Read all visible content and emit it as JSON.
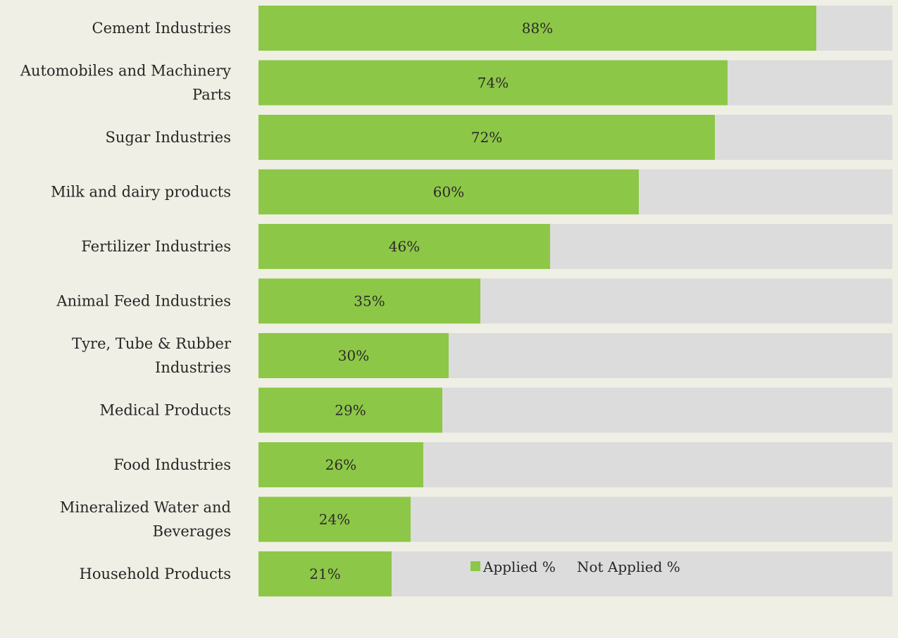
{
  "chart_data": {
    "type": "bar",
    "orientation": "horizontal",
    "stacked": true,
    "categories": [
      "Cement Industries",
      "Automobiles and Machinery Parts",
      "Sugar Industries",
      "Milk and dairy products",
      "Fertilizer Industries",
      "Animal Feed Industries",
      "Tyre, Tube & Rubber Industries",
      "Medical Products",
      "Food Industries",
      "Mineralized Water and Beverages",
      "Household Products"
    ],
    "category_lines": [
      [
        "Cement Industries"
      ],
      [
        "Automobiles and Machinery",
        "Parts"
      ],
      [
        "Sugar Industries"
      ],
      [
        "Milk and dairy products"
      ],
      [
        "Fertilizer Industries"
      ],
      [
        "Animal Feed Industries"
      ],
      [
        "Tyre, Tube & Rubber",
        "Industries"
      ],
      [
        "Medical Products"
      ],
      [
        "Food Industries"
      ],
      [
        "Mineralized Water and",
        "Beverages"
      ],
      [
        "Household Products"
      ]
    ],
    "series": [
      {
        "name": "Applied %",
        "values": [
          88,
          74,
          72,
          60,
          46,
          35,
          30,
          29,
          26,
          24,
          21
        ]
      },
      {
        "name": "Not Applied %",
        "values": [
          12,
          26,
          28,
          40,
          54,
          65,
          70,
          71,
          74,
          76,
          79
        ]
      }
    ],
    "data_labels": [
      "88%",
      "74%",
      "72%",
      "60%",
      "46%",
      "35%",
      "30%",
      "29%",
      "26%",
      "24%",
      "21%"
    ],
    "xlim": [
      0,
      100
    ],
    "grid": false,
    "legend_position": "bottom",
    "colors": {
      "applied": "#8dc747",
      "not_applied": "#dcdcdc",
      "background": "#efefe5"
    }
  }
}
